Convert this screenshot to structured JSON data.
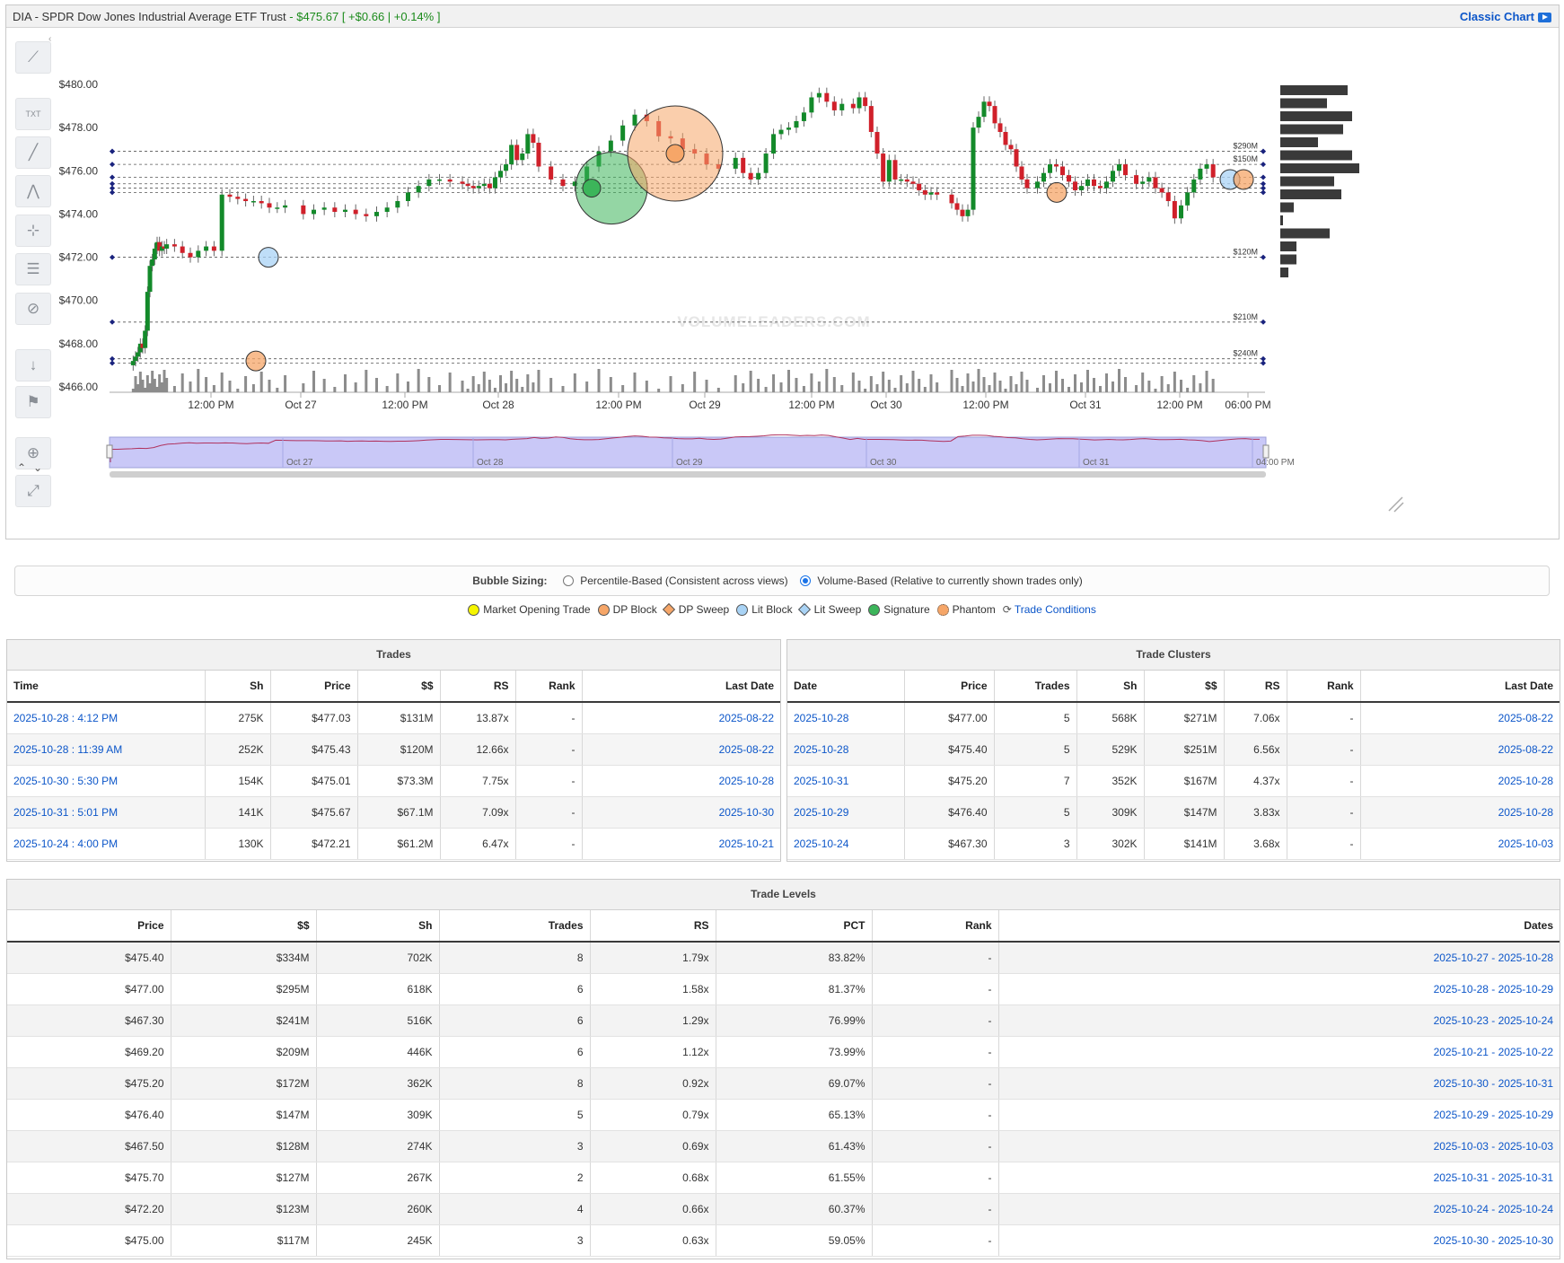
{
  "header": {
    "title": "DIA - SPDR Dow Jones Industrial Average ETF Trust",
    "quote": "- $475.67 [ +$0.66 | +0.14% ]",
    "classic_chart": "Classic Chart"
  },
  "toolbar": {
    "icons": [
      "trend-lines-icon",
      "text-annotation-icon",
      "line-tool-icon",
      "abc-pattern-icon",
      "crosshair-icon",
      "fib-lines-icon",
      "hide-eye-icon",
      "sort-123-icon",
      "flag-icon",
      "zoom-icon",
      "fullscreen-icon"
    ],
    "collapse": "‹",
    "scroll_up": "⌃",
    "scroll_down": "⌄"
  },
  "chart_data": {
    "type": "candlestick",
    "y_axis": {
      "ylim": [
        466,
        480.5
      ],
      "ticks": [
        "$466.00",
        "$468.00",
        "$470.00",
        "$472.00",
        "$474.00",
        "$476.00",
        "$478.00",
        "$480.00"
      ]
    },
    "x_axis": {
      "ticks": [
        "12:00 PM",
        "Oct 27",
        "12:00 PM",
        "Oct 28",
        "12:00 PM",
        "Oct 29",
        "12:00 PM",
        "Oct 30",
        "12:00 PM",
        "Oct 31",
        "12:00 PM",
        "06:00 PM"
      ]
    },
    "watermark": "VOLUMELEADERS.COM",
    "level_lines": [
      {
        "price": 476.9
      },
      {
        "price": 476.3,
        "label": "$150M"
      },
      {
        "price": 476.9,
        "label": "$290M"
      },
      {
        "price": 475.7
      },
      {
        "price": 475.4
      },
      {
        "price": 475.2
      },
      {
        "price": 475.0
      },
      {
        "price": 472.0,
        "label": "$120M"
      },
      {
        "price": 469.0,
        "label": "$210M"
      },
      {
        "price": 467.3,
        "label": "$240M"
      },
      {
        "price": 467.1
      }
    ],
    "candles_closes": [
      467.2,
      467.4,
      467.6,
      468.0,
      467.8,
      468.6,
      470.4,
      471.6,
      471.9,
      472.4,
      472.7,
      472.3,
      472.5,
      472.4,
      472.6,
      472.5,
      472.2,
      472.0,
      472.3,
      472.5,
      472.3,
      474.9,
      474.8,
      474.7,
      474.6,
      474.6,
      474.5,
      474.3,
      474.3,
      474.4,
      474.0,
      474.2,
      474.3,
      474.1,
      474.2,
      474.0,
      473.9,
      474.1,
      474.3,
      474.6,
      475.0,
      475.3,
      475.6,
      475.6,
      475.5,
      475.4,
      475.3,
      475.2,
      475.3,
      475.4,
      475.2,
      475.7,
      476.0,
      476.3,
      477.2,
      476.5,
      476.8,
      477.7,
      477.3,
      476.2,
      475.6,
      475.3,
      475.5,
      476.2,
      476.9,
      477.4,
      478.1,
      478.6,
      478.3,
      477.6,
      477.5,
      477.0,
      476.8,
      476.3,
      476.1,
      476.6,
      475.9,
      475.6,
      475.9,
      476.8,
      477.7,
      477.9,
      478.0,
      478.3,
      478.7,
      479.4,
      479.6,
      479.2,
      478.8,
      479.1,
      478.9,
      479.4,
      479.0,
      477.8,
      476.8,
      475.5,
      476.5,
      475.6,
      475.6,
      475.5,
      475.4,
      475.1,
      474.9,
      475.0,
      474.9,
      474.5,
      474.2,
      473.9,
      474.2,
      478.0,
      478.5,
      479.2,
      479.0,
      478.2,
      477.8,
      477.2,
      477.0,
      476.2,
      475.6,
      475.2,
      475.5,
      475.9,
      476.3,
      476.2,
      475.8,
      475.5,
      475.1,
      475.3,
      475.6,
      475.3,
      475.2,
      475.5,
      476.0,
      476.3,
      475.8,
      475.4,
      475.5,
      475.7,
      475.2,
      475.0,
      474.6,
      473.8,
      474.4,
      475.0,
      475.6,
      476.1,
      476.3,
      475.7
    ],
    "volume_profile_M": [
      75,
      52,
      80,
      70,
      42,
      80,
      88,
      60,
      68,
      15,
      3,
      55,
      18,
      18,
      9
    ],
    "bubbles": [
      {
        "type": "Lit Block",
        "price": 472.0,
        "size": "small"
      },
      {
        "type": "DP Block",
        "price": 467.2,
        "size": "small"
      },
      {
        "type": "Signature",
        "price": 475.2,
        "size": "large"
      },
      {
        "type": "DP Block",
        "price": 476.8,
        "size": "large"
      },
      {
        "type": "DP Block",
        "price": 475.0,
        "size": "small"
      },
      {
        "type": "Lit Block",
        "price": 475.6,
        "size": "small"
      },
      {
        "type": "DP Block",
        "price": 475.6,
        "size": "small"
      }
    ],
    "navigator_labels": [
      "Oct 27",
      "Oct 28",
      "Oct 29",
      "Oct 30",
      "Oct 31",
      "04:00 PM"
    ]
  },
  "bubble_sizing": {
    "label": "Bubble Sizing:",
    "options": [
      {
        "text": "Percentile-Based (Consistent across views)",
        "selected": false
      },
      {
        "text": "Volume-Based (Relative to currently shown trades only)",
        "selected": true
      }
    ]
  },
  "legend": [
    {
      "name": "Market Opening Trade",
      "color": "#f5f500",
      "shape": "circle"
    },
    {
      "name": "DP Block",
      "color": "#f6a668",
      "shape": "circle"
    },
    {
      "name": "DP Sweep",
      "color": "#f6a668",
      "shape": "diamond"
    },
    {
      "name": "Lit Block",
      "color": "#a9d3f5",
      "shape": "circle"
    },
    {
      "name": "Lit Sweep",
      "color": "#a9d3f5",
      "shape": "diamond"
    },
    {
      "name": "Signature",
      "color": "#3cb55a",
      "shape": "circle"
    },
    {
      "name": "Phantom",
      "color": "#f6a668",
      "shape": "phantom"
    }
  ],
  "trade_conditions": "Trade Conditions",
  "trades": {
    "title": "Trades",
    "columns": [
      "Time",
      "Sh",
      "Price",
      "$$",
      "RS",
      "Rank",
      "Last Date"
    ],
    "rows": [
      [
        "2025-10-28 : 4:12 PM",
        "275K",
        "$477.03",
        "$131M",
        "13.87x",
        "-",
        "2025-08-22"
      ],
      [
        "2025-10-28 : 11:39 AM",
        "252K",
        "$475.43",
        "$120M",
        "12.66x",
        "-",
        "2025-08-22"
      ],
      [
        "2025-10-30 : 5:30 PM",
        "154K",
        "$475.01",
        "$73.3M",
        "7.75x",
        "-",
        "2025-10-28"
      ],
      [
        "2025-10-31 : 5:01 PM",
        "141K",
        "$475.67",
        "$67.1M",
        "7.09x",
        "-",
        "2025-10-30"
      ],
      [
        "2025-10-24 : 4:00 PM",
        "130K",
        "$472.21",
        "$61.2M",
        "6.47x",
        "-",
        "2025-10-21"
      ]
    ]
  },
  "clusters": {
    "title": "Trade Clusters",
    "columns": [
      "Date",
      "Price",
      "Trades",
      "Sh",
      "$$",
      "RS",
      "Rank",
      "Last Date"
    ],
    "rows": [
      [
        "2025-10-28",
        "$477.00",
        "5",
        "568K",
        "$271M",
        "7.06x",
        "-",
        "2025-08-22"
      ],
      [
        "2025-10-28",
        "$475.40",
        "5",
        "529K",
        "$251M",
        "6.56x",
        "-",
        "2025-08-22"
      ],
      [
        "2025-10-31",
        "$475.20",
        "7",
        "352K",
        "$167M",
        "4.37x",
        "-",
        "2025-10-28"
      ],
      [
        "2025-10-29",
        "$476.40",
        "5",
        "309K",
        "$147M",
        "3.83x",
        "-",
        "2025-10-28"
      ],
      [
        "2025-10-24",
        "$467.30",
        "3",
        "302K",
        "$141M",
        "3.68x",
        "-",
        "2025-10-03"
      ]
    ]
  },
  "levels": {
    "title": "Trade Levels",
    "columns": [
      "Price",
      "$$",
      "Sh",
      "Trades",
      "RS",
      "PCT",
      "Rank",
      "Dates"
    ],
    "rows": [
      [
        "$475.40",
        "$334M",
        "702K",
        "8",
        "1.79x",
        "83.82%",
        "-",
        "2025-10-27 - 2025-10-28"
      ],
      [
        "$477.00",
        "$295M",
        "618K",
        "6",
        "1.58x",
        "81.37%",
        "-",
        "2025-10-28 - 2025-10-29"
      ],
      [
        "$467.30",
        "$241M",
        "516K",
        "6",
        "1.29x",
        "76.99%",
        "-",
        "2025-10-23 - 2025-10-24"
      ],
      [
        "$469.20",
        "$209M",
        "446K",
        "6",
        "1.12x",
        "73.99%",
        "-",
        "2025-10-21 - 2025-10-22"
      ],
      [
        "$475.20",
        "$172M",
        "362K",
        "8",
        "0.92x",
        "69.07%",
        "-",
        "2025-10-30 - 2025-10-31"
      ],
      [
        "$476.40",
        "$147M",
        "309K",
        "5",
        "0.79x",
        "65.13%",
        "-",
        "2025-10-29 - 2025-10-29"
      ],
      [
        "$467.50",
        "$128M",
        "274K",
        "3",
        "0.69x",
        "61.43%",
        "-",
        "2025-10-03 - 2025-10-03"
      ],
      [
        "$475.70",
        "$127M",
        "267K",
        "2",
        "0.68x",
        "61.55%",
        "-",
        "2025-10-31 - 2025-10-31"
      ],
      [
        "$472.20",
        "$123M",
        "260K",
        "4",
        "0.66x",
        "60.37%",
        "-",
        "2025-10-24 - 2025-10-24"
      ],
      [
        "$475.00",
        "$117M",
        "245K",
        "3",
        "0.63x",
        "59.05%",
        "-",
        "2025-10-30 - 2025-10-30"
      ]
    ]
  }
}
